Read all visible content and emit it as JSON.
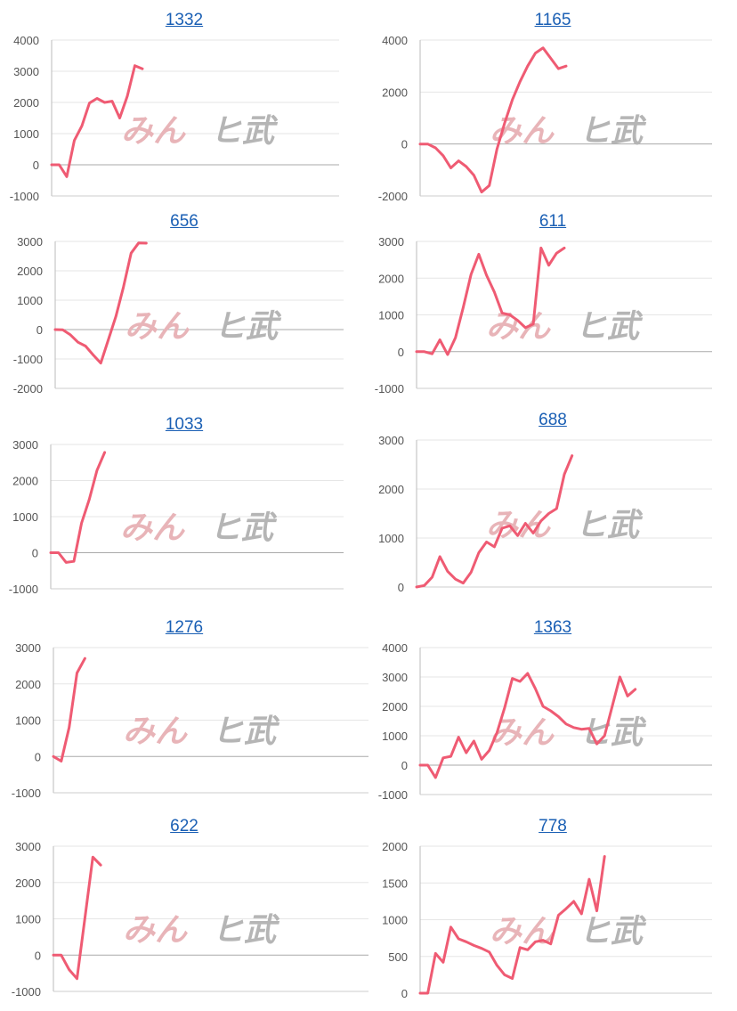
{
  "watermark": {
    "part1": "みん",
    "part2": "ヒ武"
  },
  "style": {
    "line_color": "#ef5b73",
    "axis_color": "#bbbbbb",
    "grid_color": "#e6e6e6"
  },
  "chart_data": [
    {
      "type": "line",
      "title": "1332",
      "yticks": [
        4000,
        3000,
        2000,
        1000,
        0,
        -1000
      ],
      "ylim": [
        -1000,
        4000
      ],
      "x_max": 38,
      "values": [
        0,
        0,
        -380,
        780,
        1250,
        1980,
        2130,
        2000,
        2040,
        1500,
        2200,
        3180,
        3080
      ]
    },
    {
      "type": "line",
      "title": "1165",
      "yticks": [
        4000,
        2000,
        0,
        -2000
      ],
      "ylim": [
        -2000,
        4000
      ],
      "x_max": 38,
      "values": [
        0,
        0,
        -150,
        -450,
        -920,
        -650,
        -870,
        -1200,
        -1850,
        -1600,
        -200,
        800,
        1700,
        2400,
        3000,
        3500,
        3700,
        3300,
        2900,
        3000
      ]
    },
    {
      "type": "line",
      "title": "656",
      "yticks": [
        3000,
        2000,
        1000,
        0,
        -1000,
        -2000
      ],
      "ylim": [
        -2000,
        3000
      ],
      "x_max": 38,
      "values": [
        0,
        -10,
        -180,
        -430,
        -560,
        -860,
        -1140,
        -350,
        450,
        1450,
        2600,
        2950,
        2940
      ]
    },
    {
      "type": "line",
      "title": "611",
      "yticks": [
        3000,
        2000,
        1000,
        0,
        -1000
      ],
      "ylim": [
        -1000,
        3000
      ],
      "x_max": 38,
      "values": [
        0,
        0,
        -60,
        320,
        -80,
        380,
        1200,
        2100,
        2650,
        2080,
        1620,
        1050,
        1000,
        850,
        650,
        750,
        2820,
        2350,
        2680,
        2820
      ]
    },
    {
      "type": "line",
      "title": "1033",
      "yticks": [
        3000,
        2000,
        1000,
        0,
        -1000
      ],
      "ylim": [
        -1000,
        3000
      ],
      "x_max": 38,
      "values": [
        0,
        0,
        -270,
        -240,
        820,
        1480,
        2280,
        2780
      ]
    },
    {
      "type": "line",
      "title": "688",
      "yticks": [
        3000,
        2000,
        1000,
        0
      ],
      "ylim": [
        0,
        3000
      ],
      "x_max": 38,
      "values": [
        0,
        30,
        200,
        620,
        320,
        160,
        80,
        300,
        700,
        920,
        820,
        1200,
        1250,
        1050,
        1300,
        1100,
        1350,
        1500,
        1600,
        2300,
        2680
      ]
    },
    {
      "type": "line",
      "title": "1276",
      "yticks": [
        3000,
        2000,
        1000,
        0,
        -1000
      ],
      "ylim": [
        -1000,
        3000
      ],
      "x_max": 40,
      "values": [
        0,
        -130,
        800,
        2300,
        2700
      ]
    },
    {
      "type": "line",
      "title": "1363",
      "yticks": [
        4000,
        3000,
        2000,
        1000,
        0,
        -1000
      ],
      "ylim": [
        -1000,
        4000
      ],
      "x_max": 38,
      "values": [
        0,
        0,
        -420,
        250,
        300,
        950,
        420,
        820,
        200,
        500,
        1100,
        1950,
        2950,
        2850,
        3120,
        2600,
        2000,
        1850,
        1650,
        1400,
        1280,
        1220,
        1250,
        720,
        1000,
        2000,
        3000,
        2350,
        2580
      ]
    },
    {
      "type": "line",
      "title": "622",
      "yticks": [
        3000,
        2000,
        1000,
        0,
        -1000
      ],
      "ylim": [
        -1000,
        3000
      ],
      "x_max": 40,
      "values": [
        0,
        0,
        -400,
        -650,
        1020,
        2700,
        2480
      ]
    },
    {
      "type": "line",
      "title": "778",
      "yticks": [
        2000,
        1500,
        1000,
        500,
        0
      ],
      "ylim": [
        0,
        2000
      ],
      "x_max": 38,
      "values": [
        0,
        0,
        540,
        420,
        900,
        740,
        700,
        650,
        610,
        560,
        380,
        250,
        200,
        620,
        590,
        700,
        720,
        670,
        1060,
        1150,
        1250,
        1080,
        1550,
        1120,
        1860
      ]
    }
  ]
}
